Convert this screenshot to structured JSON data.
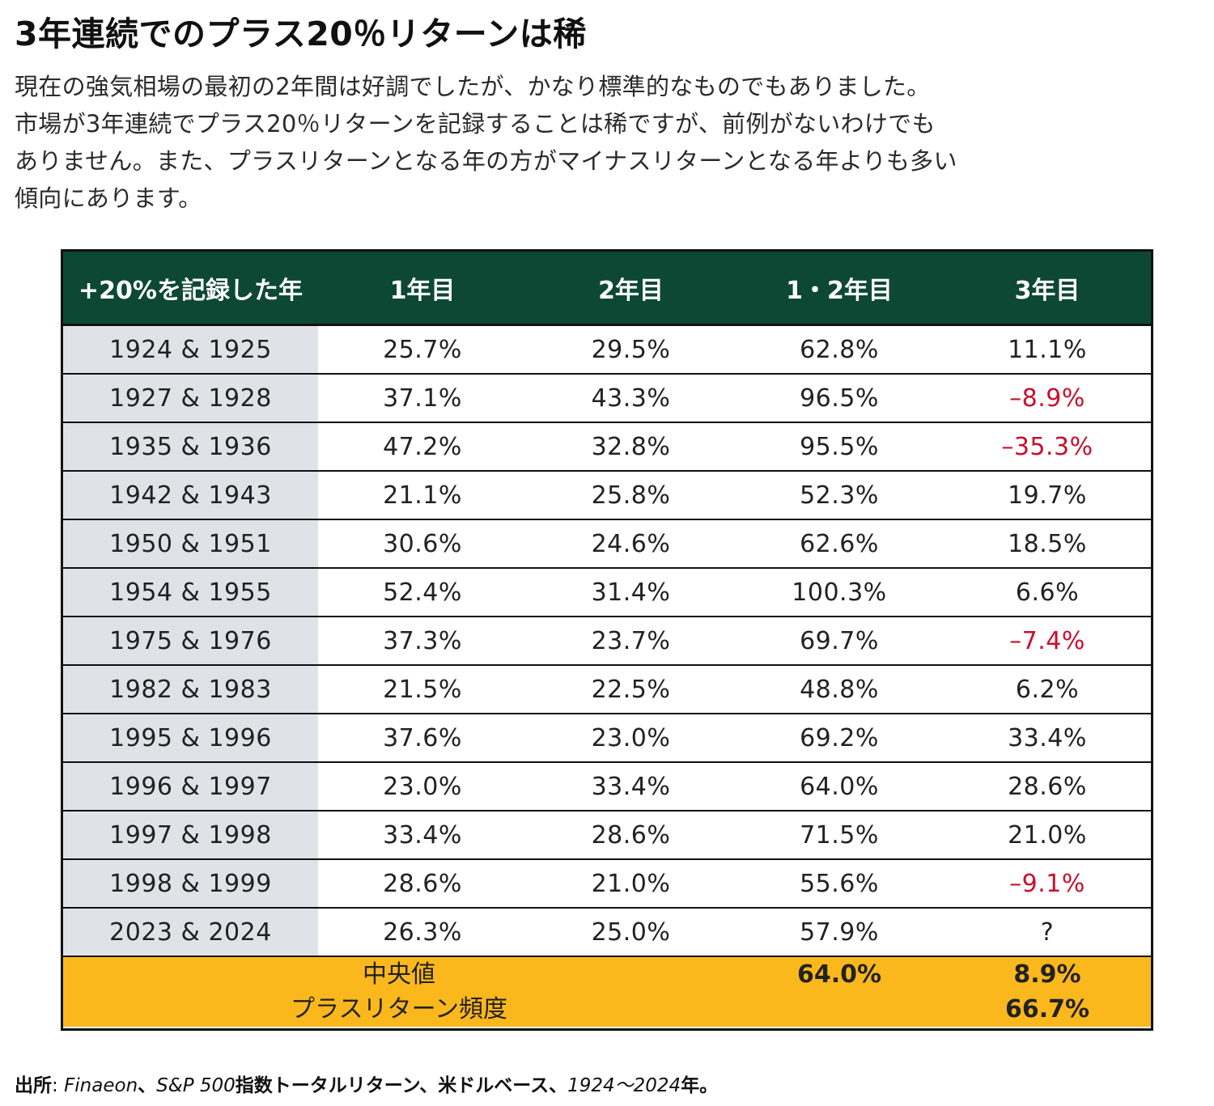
{
  "title": "3年連続でのプラス20％リターンは稀",
  "subtitle": {
    "line1": "現在の強気相場の最初の2年間は好調でしたが、かなり標準的なものでもありました。",
    "line2": "市場が3年連続でプラス20％リターンを記録することは稀ですが、前例がないわけでも",
    "line3": "ありません。また、プラスリターンとなる年の方がマイナスリターンとなる年よりも多い",
    "line4": "傾向にあります。"
  },
  "colors": {
    "header_bg": "#0d4835",
    "year_col_bg": "#dfe3e7",
    "summary_bg": "#fbb81d",
    "negative_text": "#c8102e"
  },
  "chart_data": {
    "type": "table",
    "columns": [
      "+20%を記録した年",
      "1年目",
      "2年目",
      "1・2年目",
      "3年目"
    ],
    "rows": [
      [
        "1924 & 1925",
        "25.7%",
        "29.5%",
        "62.8%",
        "11.1%"
      ],
      [
        "1927 & 1928",
        "37.1%",
        "43.3%",
        "96.5%",
        "–8.9%"
      ],
      [
        "1935 & 1936",
        "47.2%",
        "32.8%",
        "95.5%",
        "–35.3%"
      ],
      [
        "1942 & 1943",
        "21.1%",
        "25.8%",
        "52.3%",
        "19.7%"
      ],
      [
        "1950 & 1951",
        "30.6%",
        "24.6%",
        "62.6%",
        "18.5%"
      ],
      [
        "1954 & 1955",
        "52.4%",
        "31.4%",
        "100.3%",
        "6.6%"
      ],
      [
        "1975 & 1976",
        "37.3%",
        "23.7%",
        "69.7%",
        "–7.4%"
      ],
      [
        "1982 & 1983",
        "21.5%",
        "22.5%",
        "48.8%",
        "6.2%"
      ],
      [
        "1995 & 1996",
        "37.6%",
        "23.0%",
        "69.2%",
        "33.4%"
      ],
      [
        "1996 & 1997",
        "23.0%",
        "33.4%",
        "64.0%",
        "28.6%"
      ],
      [
        "1997 & 1998",
        "33.4%",
        "28.6%",
        "71.5%",
        "21.0%"
      ],
      [
        "1998 & 1999",
        "28.6%",
        "21.0%",
        "55.6%",
        "–9.1%"
      ],
      [
        "2023 & 2024",
        "26.3%",
        "25.0%",
        "57.9%",
        "?"
      ]
    ],
    "negative_cells": [
      [
        1,
        4
      ],
      [
        2,
        4
      ],
      [
        6,
        4
      ],
      [
        11,
        4
      ]
    ],
    "summary": {
      "median_label": "中央値",
      "median_year12": "64.0%",
      "median_year3": "8.9%",
      "positive_freq_label": "プラスリターン頻度",
      "positive_freq_year3": "66.7%"
    }
  },
  "source": {
    "prefix": "出所",
    "colon": ": ",
    "provider": "Finaeon",
    "sep1": "、",
    "index": "S&P 500",
    "index_suffix": "指数トータルリターン、米ドルベース、",
    "period": "1924～2024",
    "period_suffix": "年。"
  }
}
